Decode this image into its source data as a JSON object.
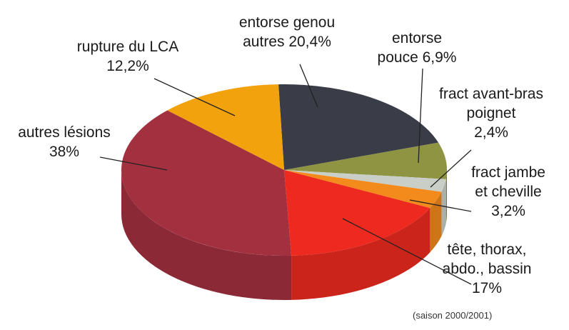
{
  "chart_data": {
    "type": "pie",
    "style": "3d",
    "title": "",
    "note": "(saison 2000/2001)",
    "slices": [
      {
        "name": "entorse genou autres",
        "value": 20.4,
        "value_label": "20,4%",
        "color": "#3a3d48",
        "label_lines": [
          "entorse genou",
          "autres 20,4%"
        ]
      },
      {
        "name": "entorse pouce",
        "value": 6.9,
        "value_label": "6,9%",
        "color": "#8e9442",
        "label_lines": [
          "entorse",
          "pouce 6,9%"
        ]
      },
      {
        "name": "fract avant-bras poignet",
        "value": 2.4,
        "value_label": "2,4%",
        "color": "#c9cec6",
        "label_lines": [
          "fract avant-bras",
          "poignet",
          "2,4%"
        ]
      },
      {
        "name": "fract jambe et cheville",
        "value": 3.2,
        "value_label": "3,2%",
        "color": "#f28a1c",
        "label_lines": [
          "fract jambe",
          "et cheville",
          "3,2%"
        ]
      },
      {
        "name": "tête, thorax, abdo., bassin",
        "value": 17,
        "value_label": "17%",
        "color": "#ee2a20",
        "label_lines": [
          "tête, thorax,",
          "abdo., bassin",
          "17%"
        ]
      },
      {
        "name": "autres lésions",
        "value": 38,
        "value_label": "38%",
        "color": "#a3303f",
        "label_lines": [
          "autres lésions",
          "38%"
        ]
      },
      {
        "name": "rupture du LCA",
        "value": 12.2,
        "value_label": "12,2%",
        "color": "#f2a20c",
        "label_lines": [
          "rupture du LCA",
          "12,2%"
        ]
      }
    ]
  }
}
